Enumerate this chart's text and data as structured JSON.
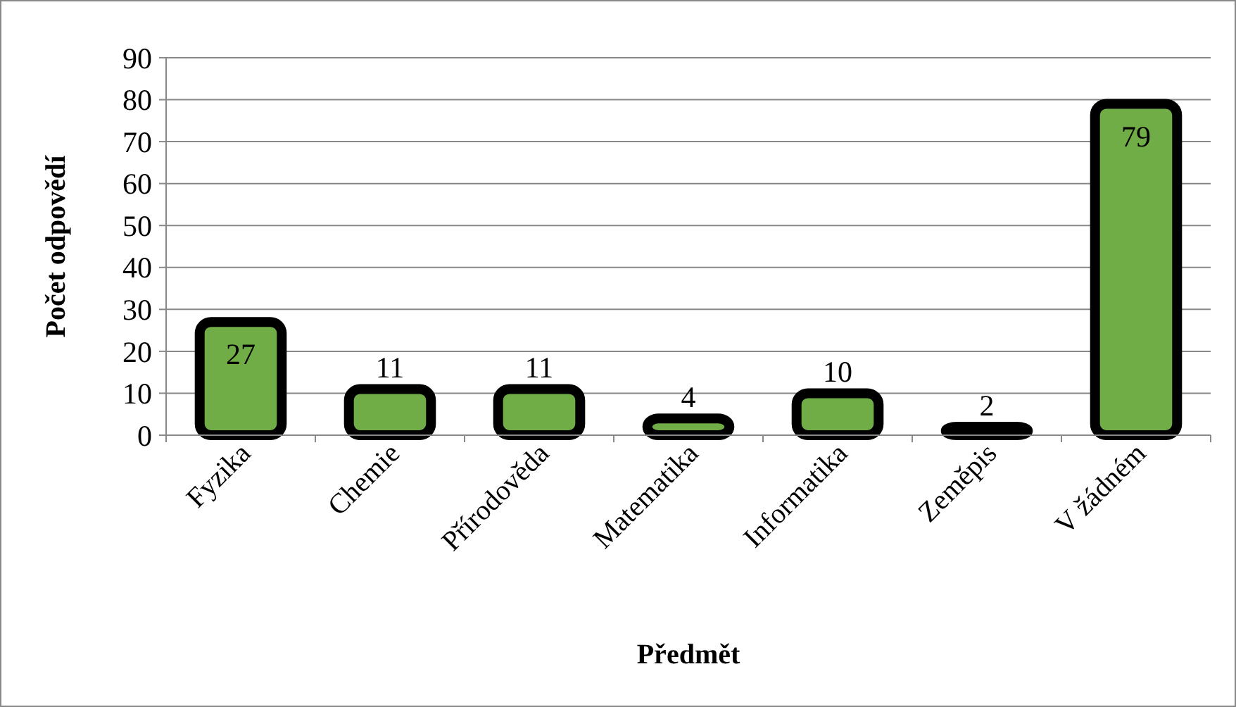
{
  "chart_data": {
    "type": "bar",
    "xlabel": "Předmět",
    "ylabel": "Počet odpovědí",
    "categories": [
      "Fyzika",
      "Chemie",
      "Přírodověda",
      "Matematika",
      "Informatika",
      "Zeměpis",
      "V žádném"
    ],
    "values": [
      27,
      11,
      11,
      4,
      10,
      2,
      79
    ],
    "color": "#70ad47",
    "ylim": [
      0,
      90
    ],
    "yticks": [
      0,
      10,
      20,
      30,
      40,
      50,
      60,
      70,
      80,
      90
    ],
    "grid": "y",
    "data_labels": true
  }
}
